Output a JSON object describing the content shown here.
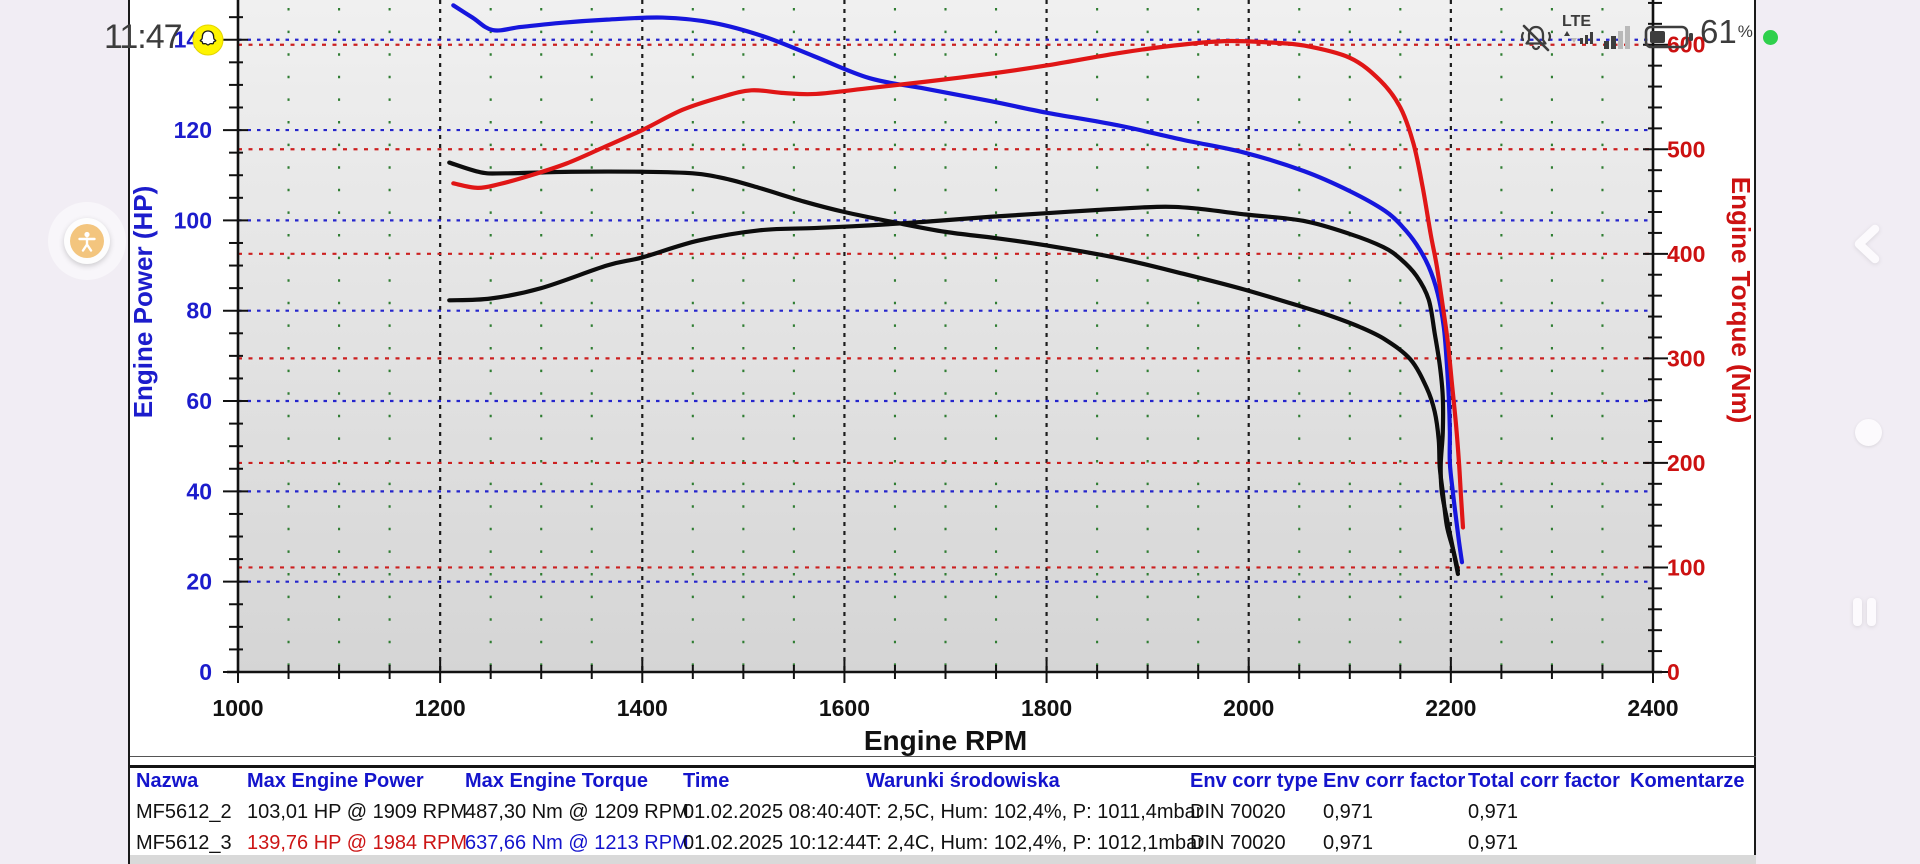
{
  "status_bar": {
    "time": "11:47",
    "network": "LTE",
    "battery_percent": "61",
    "percent_sign": "%"
  },
  "chart_data": {
    "type": "line",
    "title": "",
    "xlabel": "Engine RPM",
    "ylabel_left": "Engine Power (HP)",
    "ylabel_right": "Engine Torque (Nm)",
    "xlim": [
      1000,
      2400
    ],
    "ylim_left": [
      0,
      148.8
    ],
    "ylim_right": [
      0,
      642.8
    ],
    "x_ticks": [
      1000,
      1200,
      1400,
      1600,
      1800,
      2000,
      2200,
      2400
    ],
    "x_minor_step": 50,
    "y_left_ticks": [
      0,
      20,
      40,
      60,
      80,
      100,
      120,
      140
    ],
    "y_left_minor_step": 5,
    "y_right_ticks": [
      0,
      100,
      200,
      300,
      400,
      500,
      600
    ],
    "y_right_minor_step": 20,
    "grid": {
      "major_v_color": "#1c1c1c",
      "minor_v_color": "#2f7d32",
      "left_h_color": "#2525cc",
      "right_h_color": "#cc2020"
    },
    "series": [
      {
        "name": "MF5612_2 power (HP)",
        "axis": "left",
        "color": "#0d0d0d",
        "points": [
          [
            1209,
            82.3
          ],
          [
            1250,
            82.7
          ],
          [
            1300,
            85
          ],
          [
            1365,
            90
          ],
          [
            1400,
            91.8
          ],
          [
            1455,
            95.5
          ],
          [
            1516,
            97.8
          ],
          [
            1570,
            98.3
          ],
          [
            1625,
            98.9
          ],
          [
            1680,
            99.7
          ],
          [
            1745,
            100.8
          ],
          [
            1800,
            101.6
          ],
          [
            1850,
            102.3
          ],
          [
            1909,
            103
          ],
          [
            1945,
            102.7
          ],
          [
            1997,
            101.3
          ],
          [
            2054,
            99.9
          ],
          [
            2100,
            97
          ],
          [
            2133,
            94.1
          ],
          [
            2150,
            91.5
          ],
          [
            2166,
            87.7
          ],
          [
            2178,
            82.5
          ],
          [
            2184,
            75
          ],
          [
            2189,
            68
          ],
          [
            2192,
            61
          ],
          [
            2192,
            53
          ],
          [
            2190,
            46
          ],
          [
            2191,
            40
          ],
          [
            2196,
            34
          ],
          [
            2201,
            28.5
          ],
          [
            2207,
            21.7
          ]
        ]
      },
      {
        "name": "MF5612_2 torque (Nm)",
        "axis": "right",
        "color": "#0d0d0d",
        "points": [
          [
            1209,
            487.3
          ],
          [
            1240,
            478
          ],
          [
            1265,
            477
          ],
          [
            1330,
            478.5
          ],
          [
            1400,
            478.5
          ],
          [
            1450,
            477
          ],
          [
            1482,
            472
          ],
          [
            1516,
            463
          ],
          [
            1560,
            450
          ],
          [
            1600,
            440
          ],
          [
            1650,
            430
          ],
          [
            1700,
            421
          ],
          [
            1750,
            415
          ],
          [
            1800,
            408
          ],
          [
            1870,
            396
          ],
          [
            1935,
            381
          ],
          [
            1995,
            366
          ],
          [
            2054,
            349
          ],
          [
            2080,
            341
          ],
          [
            2110,
            330
          ],
          [
            2135,
            318
          ],
          [
            2160,
            299
          ],
          [
            2176,
            272
          ],
          [
            2184,
            249
          ],
          [
            2188,
            222
          ],
          [
            2189,
            196
          ],
          [
            2192,
            172
          ],
          [
            2196,
            140
          ],
          [
            2202,
            118
          ],
          [
            2207,
            97
          ]
        ]
      },
      {
        "name": "MF5612_3 torque (Nm)",
        "axis": "right",
        "color": "#1616dd",
        "points": [
          [
            1213,
            637.7
          ],
          [
            1232,
            626
          ],
          [
            1252,
            614
          ],
          [
            1280,
            617
          ],
          [
            1320,
            621
          ],
          [
            1365,
            624
          ],
          [
            1420,
            626
          ],
          [
            1470,
            621
          ],
          [
            1520,
            608
          ],
          [
            1570,
            589
          ],
          [
            1625,
            568
          ],
          [
            1680,
            558
          ],
          [
            1745,
            546
          ],
          [
            1800,
            535
          ],
          [
            1870,
            523
          ],
          [
            1935,
            509
          ],
          [
            1995,
            497
          ],
          [
            2055,
            479
          ],
          [
            2100,
            460
          ],
          [
            2135,
            441
          ],
          [
            2152,
            426
          ],
          [
            2166,
            409
          ],
          [
            2178,
            388
          ],
          [
            2187,
            362
          ],
          [
            2193,
            330
          ],
          [
            2196,
            295
          ],
          [
            2198,
            262
          ],
          [
            2199,
            230
          ],
          [
            2199,
            200
          ],
          [
            2202,
            172
          ],
          [
            2205,
            148
          ],
          [
            2208,
            125
          ],
          [
            2211,
            105
          ]
        ]
      },
      {
        "name": "MF5612_3 power (HP)",
        "axis": "left",
        "color": "#e01616",
        "points": [
          [
            1213,
            108.2
          ],
          [
            1237,
            107.2
          ],
          [
            1258,
            108
          ],
          [
            1290,
            110
          ],
          [
            1325,
            112.6
          ],
          [
            1360,
            116
          ],
          [
            1400,
            120
          ],
          [
            1440,
            124.5
          ],
          [
            1478,
            127.3
          ],
          [
            1508,
            128.8
          ],
          [
            1540,
            128.2
          ],
          [
            1572,
            128
          ],
          [
            1625,
            129.3
          ],
          [
            1680,
            130.7
          ],
          [
            1745,
            132.5
          ],
          [
            1800,
            134.3
          ],
          [
            1870,
            137
          ],
          [
            1925,
            138.7
          ],
          [
            1976,
            139.7
          ],
          [
            2020,
            139.4
          ],
          [
            2055,
            138.7
          ],
          [
            2100,
            136
          ],
          [
            2130,
            131
          ],
          [
            2150,
            125
          ],
          [
            2163,
            117
          ],
          [
            2172,
            107.5
          ],
          [
            2180,
            97
          ],
          [
            2186,
            90
          ],
          [
            2192,
            81
          ],
          [
            2197,
            73
          ],
          [
            2201,
            64
          ],
          [
            2205,
            55
          ],
          [
            2208,
            46.5
          ],
          [
            2210,
            39
          ],
          [
            2212,
            32
          ]
        ]
      }
    ]
  },
  "table": {
    "headers": [
      "Nazwa",
      "Max Engine Power",
      "Max Engine Torque",
      "Time",
      "Warunki środowiska",
      "Env corr type",
      "Env corr factor",
      "Total corr factor",
      "Komentarze"
    ],
    "rows": [
      [
        "MF5612_2",
        "103,01 HP @ 1909 RPM",
        "487,30 Nm @ 1209 RPM",
        "01.02.2025 08:40:40",
        "T: 2,5C, Hum: 102,4%, P: 1011,4mbar",
        "DIN 70020",
        "0,971",
        "0,971",
        ""
      ],
      [
        "MF5612_3",
        "139,76 HP @ 1984 RPM",
        "637,66 Nm @ 1213 RPM",
        "01.02.2025 10:12:44",
        "T: 2,4C, Hum: 102,4%, P: 1012,1mbar",
        "DIN 70020",
        "0,971",
        "0,971",
        ""
      ]
    ]
  },
  "colors": {
    "table_header_blue": "#1414cc",
    "max_power_red": "#cc1515",
    "max_torque_blue": "#1414cc",
    "power_axis_blue": "#1c1ccc",
    "torque_axis_red": "#cc1111",
    "snapchat_yellow": "#fef400",
    "privacy_green": "#2fd04c",
    "plot_bg_top": "#f0f0f0",
    "plot_bg_bottom": "#d5d5d5"
  }
}
